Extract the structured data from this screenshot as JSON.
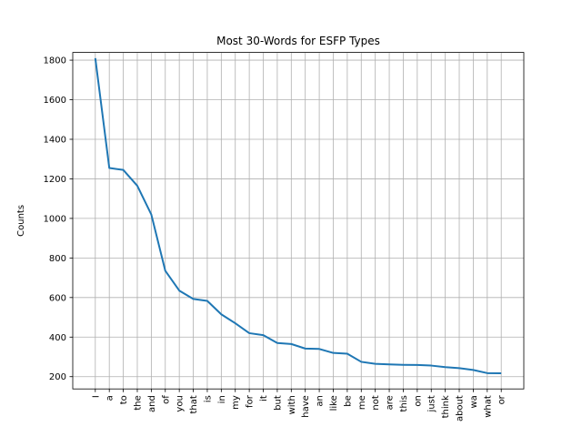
{
  "chart_data": {
    "type": "line",
    "title": "Most 30-Words for ESFP Types",
    "xlabel": "",
    "ylabel": "Counts",
    "grid": true,
    "legend": "none",
    "ylim": [
      138,
      1839
    ],
    "yticks": [
      200,
      400,
      600,
      800,
      1000,
      1200,
      1400,
      1600,
      1800
    ],
    "categories": [
      "I",
      "a",
      "to",
      "the",
      "and",
      "of",
      "you",
      "that",
      "is",
      "in",
      "my",
      "for",
      "it",
      "but",
      "with",
      "have",
      "an",
      "like",
      "be",
      "me",
      "not",
      "are",
      "this",
      "on",
      "just",
      "think",
      "about",
      "wa",
      "what",
      "or"
    ],
    "series": [
      {
        "color": "#1f77b4",
        "values": [
          1810,
          1255,
          1245,
          1165,
          1020,
          735,
          635,
          593,
          583,
          515,
          470,
          420,
          410,
          370,
          365,
          342,
          340,
          320,
          316,
          275,
          265,
          262,
          260,
          259,
          256,
          248,
          243,
          234,
          218,
          217
        ]
      }
    ]
  }
}
